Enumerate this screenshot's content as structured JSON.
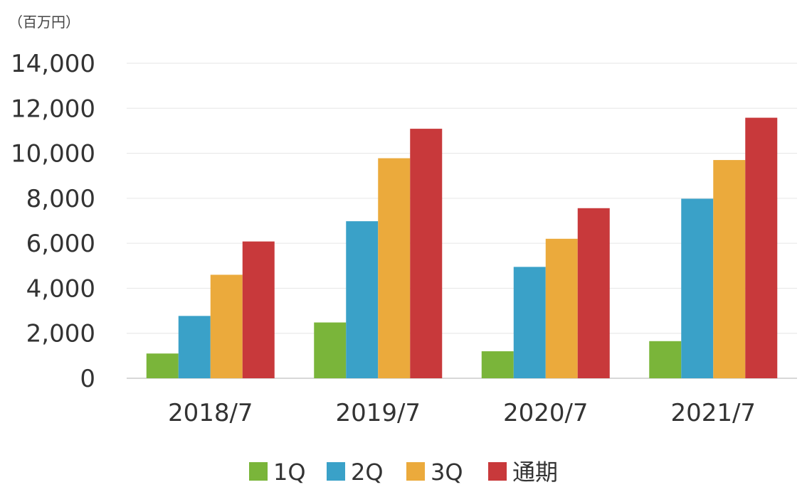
{
  "chart_data": {
    "type": "bar",
    "unit_label": "（百万円）",
    "categories": [
      "2018/7",
      "2019/7",
      "2020/7",
      "2021/7"
    ],
    "series": [
      {
        "name": "1Q",
        "color": "#7ab53a",
        "values": [
          1100,
          2480,
          1200,
          1650
        ]
      },
      {
        "name": "2Q",
        "color": "#3aa1c8",
        "values": [
          2770,
          6980,
          4950,
          7980
        ]
      },
      {
        "name": "3Q",
        "color": "#ebaa3c",
        "values": [
          4600,
          9780,
          6200,
          9700
        ]
      },
      {
        "name": "通期",
        "color": "#c8393b",
        "values": [
          6080,
          11090,
          7560,
          11580
        ]
      }
    ],
    "ylim": [
      0,
      14000
    ],
    "yticks": [
      "0",
      "2,000",
      "4,000",
      "6,000",
      "8,000",
      "10,000",
      "12,000",
      "14,000"
    ],
    "ytick_values": [
      0,
      2000,
      4000,
      6000,
      8000,
      10000,
      12000,
      14000
    ],
    "grid": true,
    "legend_position": "bottom"
  }
}
